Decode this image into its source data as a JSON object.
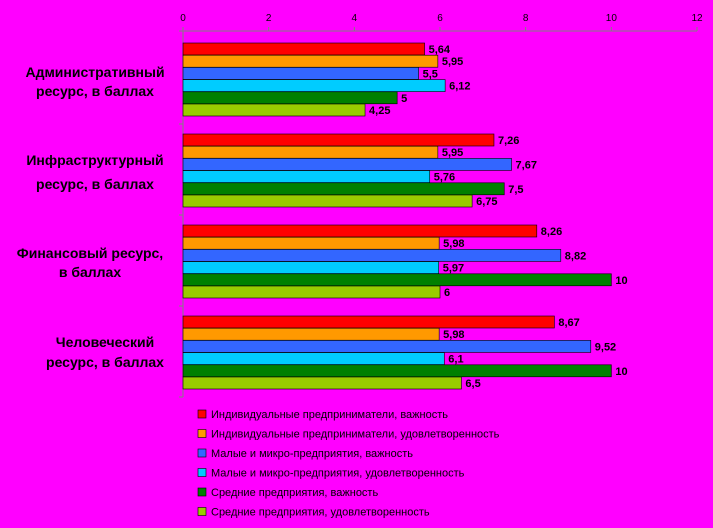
{
  "chart_data": {
    "type": "bar",
    "orientation": "horizontal",
    "xlim": [
      0,
      12
    ],
    "x_ticks": [
      0,
      2,
      4,
      6,
      8,
      10,
      12
    ],
    "x_axis_position": "top",
    "grid": false,
    "legend_position": "bottom",
    "categories": [
      [
        "Административный",
        "ресурс, в баллах"
      ],
      [
        "Инфраструктурный",
        "ресурс, в баллах"
      ],
      [
        "Финансовый ресурс,",
        "в баллах"
      ],
      [
        "Человеческий",
        "ресурс, в баллах"
      ]
    ],
    "series": [
      {
        "name": "Индивидуальные предприниматели, важность",
        "color": "#FF0000",
        "values": [
          5.64,
          7.26,
          8.26,
          8.67
        ],
        "labels": [
          "5,64",
          "7,26",
          "8,26",
          "8,67"
        ]
      },
      {
        "name": "Индивидуальные предприниматели, удовлетворенность",
        "color": "#FF9900",
        "values": [
          5.95,
          5.95,
          5.98,
          5.98
        ],
        "labels": [
          "5,95",
          "5,95",
          "5,98",
          "5,98"
        ]
      },
      {
        "name": "Малые и микро-предприятия, важность",
        "color": "#3366FF",
        "values": [
          5.5,
          7.67,
          8.82,
          9.52
        ],
        "labels": [
          "5,5",
          "7,67",
          "8,82",
          "9,52"
        ]
      },
      {
        "name": "Малые и микро-предприятия, удовлетворенность",
        "color": "#00CCFF",
        "values": [
          6.12,
          5.76,
          5.97,
          6.1
        ],
        "labels": [
          "6,12",
          "5,76",
          "5,97",
          "6,1"
        ]
      },
      {
        "name": "Средние предприятия, важность",
        "color": "#008000",
        "values": [
          5,
          7.5,
          10,
          10
        ],
        "labels": [
          "5",
          "7,5",
          "10",
          "10"
        ]
      },
      {
        "name": "Средние предприятия, удовлетворенность",
        "color": "#99CC00",
        "values": [
          4.25,
          6.75,
          6,
          6.5
        ],
        "labels": [
          "4,25",
          "6,75",
          "6",
          "6,5"
        ]
      }
    ]
  }
}
